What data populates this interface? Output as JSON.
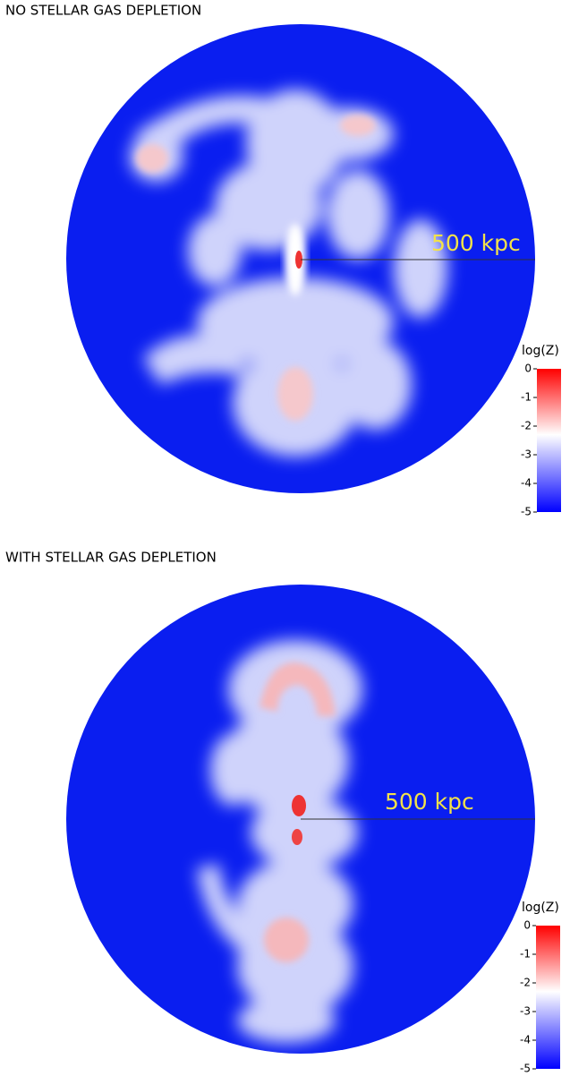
{
  "panels": [
    {
      "title": "NO STELLAR GAS DEPLETION",
      "scale_label": "500 kpc",
      "colorbar": {
        "label": "log(Z)",
        "ticks": [
          0,
          -1,
          -2,
          -3,
          -4,
          -5
        ]
      }
    },
    {
      "title": "WITH STELLAR GAS DEPLETION",
      "scale_label": "500 kpc",
      "colorbar": {
        "label": "log(Z)",
        "ticks": [
          0,
          -1,
          -2,
          -3,
          -4,
          -5
        ]
      }
    }
  ]
}
